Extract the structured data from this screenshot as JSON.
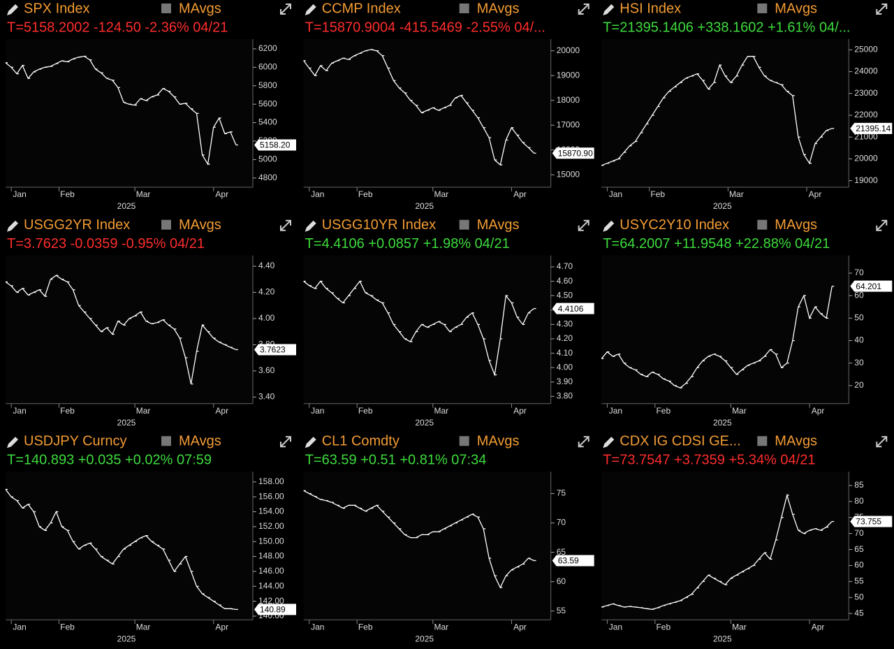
{
  "chart_data": [
    {
      "type": "line",
      "title": "SPX Index",
      "legend": "MAvgs",
      "quote": "T=5158.2002 -124.50 -2.36% 04/21",
      "quote_color": "#ff2d2d",
      "color": "#ffffff",
      "values": [
        6050,
        6000,
        5930,
        6020,
        5880,
        5950,
        5980,
        6000,
        6010,
        6040,
        6070,
        6060,
        6090,
        6110,
        6120,
        6080,
        5980,
        5940,
        5880,
        5860,
        5780,
        5620,
        5600,
        5590,
        5660,
        5640,
        5680,
        5700,
        5770,
        5740,
        5680,
        5600,
        5610,
        5550,
        5500,
        5050,
        4950,
        5350,
        5450,
        5280,
        5300,
        5158.2
      ],
      "last_tag": {
        "value": 5158.2,
        "label": "5158.20"
      },
      "ylim": [
        4700,
        6260
      ],
      "yticks": [
        4800,
        5000,
        5200,
        5400,
        5600,
        5800,
        6000,
        6200
      ],
      "xlim": [
        0,
        44
      ],
      "xticks": [
        {
          "value": 2.5,
          "label": "Jan"
        },
        {
          "value": 11,
          "label": "Feb"
        },
        {
          "value": 24.5,
          "label": "Mar"
        },
        {
          "value": 38.5,
          "label": "Apr"
        }
      ],
      "xlabel": "2025"
    },
    {
      "type": "line",
      "title": "CCMP Index",
      "legend": "MAvgs",
      "quote": "T=15870.9004 -415.5469 -2.55% 04/...",
      "quote_color": "#ff2d2d",
      "color": "#ffffff",
      "values": [
        19600,
        19300,
        19000,
        19400,
        19200,
        19500,
        19600,
        19700,
        19650,
        19800,
        19900,
        20000,
        20050,
        20000,
        19800,
        19300,
        18800,
        18500,
        18300,
        18000,
        17800,
        17500,
        17600,
        17700,
        17600,
        17700,
        17800,
        18100,
        18200,
        17900,
        17600,
        17300,
        16900,
        16500,
        15600,
        15400,
        16400,
        16900,
        16600,
        16300,
        16100,
        15870.9
      ],
      "last_tag": {
        "value": 15870.9,
        "label": "15870.90"
      },
      "ylim": [
        14500,
        20300
      ],
      "yticks": [
        15000,
        16000,
        17000,
        18000,
        19000,
        20000
      ],
      "xlim": [
        0,
        44
      ],
      "xticks": [
        {
          "value": 2.5,
          "label": "Jan"
        },
        {
          "value": 11,
          "label": "Feb"
        },
        {
          "value": 24.5,
          "label": "Mar"
        },
        {
          "value": 38.5,
          "label": "Apr"
        }
      ],
      "xlabel": "2025"
    },
    {
      "type": "line",
      "title": "HSI Index",
      "legend": "MAvgs",
      "quote": "T=21395.1406 +338.1602 +1.61% 04/...",
      "quote_color": "#3ddc3d",
      "color": "#ffffff",
      "values": [
        19700,
        19800,
        19900,
        20000,
        20300,
        20600,
        20800,
        21200,
        21600,
        22000,
        22400,
        22800,
        23100,
        23300,
        23500,
        23700,
        23800,
        23900,
        23600,
        23200,
        23500,
        24300,
        23800,
        23500,
        23800,
        24300,
        24700,
        24700,
        24200,
        23800,
        23600,
        23500,
        23400,
        23100,
        22900,
        21000,
        20200,
        19800,
        20700,
        21000,
        21300,
        21395.14
      ],
      "last_tag": {
        "value": 21395.14,
        "label": "21395.14"
      },
      "ylim": [
        18700,
        25300
      ],
      "yticks": [
        19000,
        20000,
        21000,
        22000,
        23000,
        24000,
        25000
      ],
      "xlim": [
        0,
        44
      ],
      "xticks": [
        {
          "value": 2.5,
          "label": "Jan"
        },
        {
          "value": 10,
          "label": "Feb"
        },
        {
          "value": 24,
          "label": "Mar"
        },
        {
          "value": 38,
          "label": "Apr"
        }
      ],
      "xlabel": "2025"
    },
    {
      "type": "line",
      "title": "USGG2YR Index",
      "legend": "MAvgs",
      "quote": "T=3.7623 -0.0359 -0.95% 04/21",
      "quote_color": "#ff2d2d",
      "color": "#ffffff",
      "values": [
        4.28,
        4.25,
        4.2,
        4.23,
        4.18,
        4.2,
        4.22,
        4.17,
        4.3,
        4.33,
        4.3,
        4.28,
        4.22,
        4.1,
        4.05,
        4.0,
        3.95,
        3.9,
        3.93,
        3.88,
        3.98,
        3.95,
        4.0,
        4.02,
        4.05,
        3.98,
        3.96,
        3.97,
        3.99,
        3.95,
        3.92,
        3.85,
        3.7,
        3.5,
        3.75,
        3.95,
        3.9,
        3.85,
        3.82,
        3.8,
        3.78,
        3.7623
      ],
      "last_tag": {
        "value": 3.7623,
        "label": "3.7623"
      },
      "ylim": [
        3.35,
        4.45
      ],
      "yticks": [
        {
          "value": 3.4,
          "label": "3.40"
        },
        {
          "value": 3.6,
          "label": "3.60"
        },
        {
          "value": 3.8,
          "label": "3.80"
        },
        {
          "value": 4.0,
          "label": "4.00"
        },
        {
          "value": 4.2,
          "label": "4.20"
        },
        {
          "value": 4.4,
          "label": "4.40"
        }
      ],
      "xlim": [
        0,
        44
      ],
      "xticks": [
        {
          "value": 2.5,
          "label": "Jan"
        },
        {
          "value": 11,
          "label": "Feb"
        },
        {
          "value": 24.5,
          "label": "Mar"
        },
        {
          "value": 38.5,
          "label": "Apr"
        }
      ],
      "xlabel": "2025"
    },
    {
      "type": "line",
      "title": "USGG10YR Index",
      "legend": "MAvgs",
      "quote": "T=4.4106 +0.0857 +1.98% 04/21",
      "quote_color": "#3ddc3d",
      "color": "#ffffff",
      "values": [
        4.6,
        4.57,
        4.55,
        4.6,
        4.55,
        4.52,
        4.48,
        4.45,
        4.5,
        4.55,
        4.6,
        4.52,
        4.5,
        4.47,
        4.45,
        4.38,
        4.3,
        4.25,
        4.2,
        4.18,
        4.25,
        4.3,
        4.28,
        4.3,
        4.32,
        4.3,
        4.25,
        4.28,
        4.3,
        4.35,
        4.38,
        4.3,
        4.2,
        4.05,
        3.95,
        4.2,
        4.5,
        4.45,
        4.35,
        4.3,
        4.38,
        4.4106
      ],
      "last_tag": {
        "value": 4.4106,
        "label": "4.4106"
      },
      "ylim": [
        3.75,
        4.75
      ],
      "yticks": [
        {
          "value": 3.8,
          "label": "3.80"
        },
        {
          "value": 3.9,
          "label": "3.90"
        },
        {
          "value": 4.0,
          "label": "4.00"
        },
        {
          "value": 4.1,
          "label": "4.10"
        },
        {
          "value": 4.2,
          "label": "4.20"
        },
        {
          "value": 4.3,
          "label": "4.30"
        },
        {
          "value": 4.4,
          "label": "4.40"
        },
        {
          "value": 4.5,
          "label": "4.50"
        },
        {
          "value": 4.6,
          "label": "4.60"
        },
        {
          "value": 4.7,
          "label": "4.70"
        }
      ],
      "xlim": [
        0,
        44
      ],
      "xticks": [
        {
          "value": 2.5,
          "label": "Jan"
        },
        {
          "value": 11,
          "label": "Feb"
        },
        {
          "value": 24.5,
          "label": "Mar"
        },
        {
          "value": 38.5,
          "label": "Apr"
        }
      ],
      "xlabel": "2025"
    },
    {
      "type": "line",
      "title": "USYC2Y10 Index",
      "legend": "MAvgs",
      "quote": "T=64.2007 +11.9548 +22.88% 04/21",
      "quote_color": "#3ddc3d",
      "color": "#ffffff",
      "values": [
        32,
        35,
        33,
        34,
        30,
        28,
        27,
        25,
        24,
        26,
        25,
        23,
        22,
        20,
        19,
        21,
        24,
        28,
        31,
        33,
        34,
        33,
        31,
        28,
        25,
        27,
        29,
        30,
        31,
        33,
        36,
        34,
        28,
        30,
        40,
        55,
        60,
        50,
        55,
        52,
        50,
        64.2007
      ],
      "last_tag": {
        "value": 64.2007,
        "label": "64.201"
      },
      "ylim": [
        12,
        76
      ],
      "yticks": [
        20,
        30,
        40,
        50,
        60,
        70
      ],
      "xlim": [
        0,
        44
      ],
      "xticks": [
        {
          "value": 2.5,
          "label": "Jan"
        },
        {
          "value": 11,
          "label": "Feb"
        },
        {
          "value": 24.5,
          "label": "Mar"
        },
        {
          "value": 38.5,
          "label": "Apr"
        }
      ],
      "xlabel": "2025"
    },
    {
      "type": "line",
      "title": "USDJPY Curncy",
      "legend": "MAvgs",
      "quote": "T=140.893 +0.035 +0.02% 07:59",
      "quote_color": "#3ddc3d",
      "color": "#ffffff",
      "values": [
        157,
        156,
        155.5,
        154.5,
        155,
        154,
        152,
        151.5,
        152.5,
        154,
        152,
        151.5,
        150,
        149,
        149.5,
        149.8,
        149,
        148,
        147.5,
        147,
        148,
        149,
        149.5,
        150,
        150.5,
        150.8,
        150,
        149.5,
        149,
        147.5,
        146,
        147,
        148,
        146,
        144,
        143,
        142.5,
        142,
        141.5,
        141,
        141,
        140.893
      ],
      "last_tag": {
        "value": 140.893,
        "label": "140.89"
      },
      "ylim": [
        139.5,
        158.8
      ],
      "yticks": [
        {
          "value": 140,
          "label": "140.00"
        },
        {
          "value": 142,
          "label": "142.00"
        },
        {
          "value": 144,
          "label": "144.00"
        },
        {
          "value": 146,
          "label": "146.00"
        },
        {
          "value": 148,
          "label": "148.00"
        },
        {
          "value": 150,
          "label": "150.00"
        },
        {
          "value": 152,
          "label": "152.00"
        },
        {
          "value": 154,
          "label": "154.00"
        },
        {
          "value": 156,
          "label": "156.00"
        },
        {
          "value": 158,
          "label": "158.00"
        }
      ],
      "xlim": [
        0,
        44
      ],
      "xticks": [
        {
          "value": 2.5,
          "label": "Jan"
        },
        {
          "value": 11,
          "label": "Feb"
        },
        {
          "value": 24.5,
          "label": "Mar"
        },
        {
          "value": 38.5,
          "label": "Apr"
        }
      ],
      "xlabel": "2025"
    },
    {
      "type": "line",
      "title": "CL1 Comdty",
      "legend": "MAvgs",
      "quote": "T=63.59 +0.51 +0.81% 07:34",
      "quote_color": "#3ddc3d",
      "color": "#ffffff",
      "values": [
        75.5,
        75,
        74.5,
        74,
        73.8,
        73.5,
        73,
        72.5,
        73,
        73,
        72.5,
        72,
        72.5,
        73,
        72,
        71,
        70,
        69,
        68,
        67.5,
        67.5,
        68,
        68,
        68.5,
        68.5,
        69,
        69.5,
        70,
        70.5,
        71,
        71.5,
        71,
        69,
        64,
        61,
        59,
        61,
        62,
        62.5,
        63,
        64,
        63.59
      ],
      "last_tag": {
        "value": 63.59,
        "label": "63.59"
      },
      "ylim": [
        53.5,
        78
      ],
      "yticks": [
        55,
        60,
        65,
        70,
        75
      ],
      "xlim": [
        0,
        44
      ],
      "xticks": [
        {
          "value": 2.5,
          "label": "Jan"
        },
        {
          "value": 11,
          "label": "Feb"
        },
        {
          "value": 24.5,
          "label": "Mar"
        },
        {
          "value": 38.5,
          "label": "Apr"
        }
      ],
      "xlabel": "2025"
    },
    {
      "type": "line",
      "title": "CDX IG CDSI GE...",
      "legend": "MAvgs",
      "quote": "T=73.7547 +3.7359 +5.34% 04/21",
      "quote_color": "#ff2d2d",
      "color": "#ffffff",
      "values": [
        47,
        47.5,
        48,
        47.5,
        47,
        47.2,
        47,
        46.8,
        46.5,
        46.3,
        46.8,
        47.5,
        48,
        48.5,
        49,
        50,
        51,
        53,
        55,
        57,
        56,
        55,
        54,
        56,
        57,
        58,
        59,
        60,
        62,
        64,
        62,
        68,
        75,
        82,
        76,
        71,
        70,
        71,
        71.5,
        71,
        72,
        73.7547
      ],
      "last_tag": {
        "value": 73.7547,
        "label": "73.755"
      },
      "ylim": [
        43,
        88
      ],
      "yticks": [
        45,
        50,
        55,
        60,
        65,
        70,
        75,
        80,
        85
      ],
      "xlim": [
        0,
        44
      ],
      "xticks": [
        {
          "value": 2.5,
          "label": "Jan"
        },
        {
          "value": 11,
          "label": "Feb"
        },
        {
          "value": 24.5,
          "label": "Mar"
        },
        {
          "value": 38.5,
          "label": "Apr"
        }
      ],
      "xlabel": "2025"
    }
  ]
}
